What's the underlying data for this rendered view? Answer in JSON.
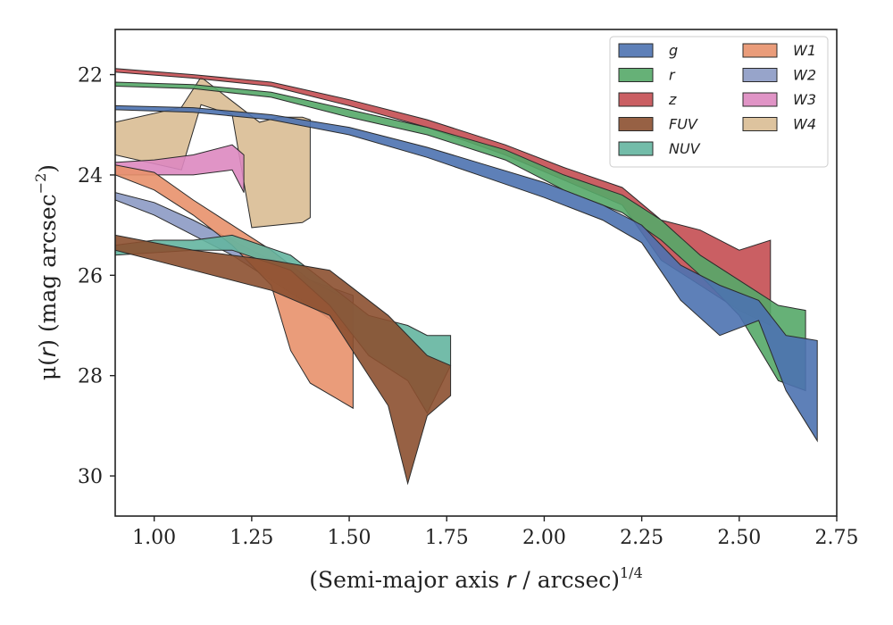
{
  "chart_data": {
    "type": "area",
    "xlabel": {
      "prefix": "(Semi-major axis ",
      "var": "r",
      "suffix": " / arcsec)",
      "sup": "1/4"
    },
    "ylabel": {
      "prefix": "μ(",
      "var": "r",
      "suffix": ") (mag arcsec",
      "sup": "−2",
      "end": ")"
    },
    "xlim": [
      0.9,
      2.75
    ],
    "ylim": [
      21.1,
      30.8
    ],
    "y_inverted": true,
    "xticks": [
      1.0,
      1.25,
      1.5,
      1.75,
      2.0,
      2.25,
      2.5,
      2.75
    ],
    "xtick_labels": [
      "1.00",
      "1.25",
      "1.50",
      "1.75",
      "2.00",
      "2.25",
      "2.50",
      "2.75"
    ],
    "yticks": [
      22,
      24,
      26,
      28,
      30
    ],
    "ytick_labels": [
      "22",
      "24",
      "26",
      "28",
      "30"
    ],
    "grid": false,
    "legend": {
      "placement": "top-right",
      "columns": 2
    },
    "series": [
      {
        "name": "g",
        "color": "#4c72b0",
        "upper": [
          [
            0.9,
            22.62
          ],
          [
            1.1,
            22.66
          ],
          [
            1.3,
            22.8
          ],
          [
            1.5,
            23.05
          ],
          [
            1.7,
            23.45
          ],
          [
            1.85,
            23.8
          ],
          [
            2.0,
            24.15
          ],
          [
            2.15,
            24.6
          ],
          [
            2.25,
            25.0
          ],
          [
            2.35,
            25.8
          ],
          [
            2.45,
            26.2
          ],
          [
            2.55,
            26.5
          ],
          [
            2.62,
            27.2
          ],
          [
            2.7,
            27.3
          ]
        ],
        "lower": [
          [
            0.9,
            22.7
          ],
          [
            1.1,
            22.75
          ],
          [
            1.3,
            22.9
          ],
          [
            1.5,
            23.2
          ],
          [
            1.7,
            23.65
          ],
          [
            1.85,
            24.05
          ],
          [
            2.0,
            24.45
          ],
          [
            2.15,
            24.9
          ],
          [
            2.25,
            25.35
          ],
          [
            2.35,
            26.5
          ],
          [
            2.45,
            27.2
          ],
          [
            2.55,
            26.9
          ],
          [
            2.62,
            28.3
          ],
          [
            2.7,
            29.3
          ]
        ]
      },
      {
        "name": "r",
        "color": "#55a868",
        "upper": [
          [
            0.9,
            22.15
          ],
          [
            1.1,
            22.2
          ],
          [
            1.3,
            22.35
          ],
          [
            1.5,
            22.7
          ],
          [
            1.7,
            23.05
          ],
          [
            1.9,
            23.5
          ],
          [
            2.05,
            24.0
          ],
          [
            2.2,
            24.4
          ],
          [
            2.3,
            24.9
          ],
          [
            2.4,
            25.6
          ],
          [
            2.5,
            26.1
          ],
          [
            2.6,
            26.6
          ],
          [
            2.67,
            26.7
          ]
        ],
        "lower": [
          [
            0.9,
            22.23
          ],
          [
            1.1,
            22.28
          ],
          [
            1.3,
            22.45
          ],
          [
            1.5,
            22.85
          ],
          [
            1.7,
            23.2
          ],
          [
            1.9,
            23.7
          ],
          [
            2.05,
            24.3
          ],
          [
            2.2,
            24.75
          ],
          [
            2.3,
            25.3
          ],
          [
            2.4,
            26.0
          ],
          [
            2.5,
            26.8
          ],
          [
            2.6,
            28.1
          ],
          [
            2.67,
            28.3
          ]
        ]
      },
      {
        "name": "z",
        "color": "#c44e52",
        "upper": [
          [
            0.9,
            21.88
          ],
          [
            1.1,
            22.0
          ],
          [
            1.3,
            22.15
          ],
          [
            1.5,
            22.5
          ],
          [
            1.7,
            22.9
          ],
          [
            1.9,
            23.4
          ],
          [
            2.05,
            23.85
          ],
          [
            2.2,
            24.25
          ],
          [
            2.3,
            24.9
          ],
          [
            2.4,
            25.1
          ],
          [
            2.5,
            25.5
          ],
          [
            2.58,
            25.3
          ]
        ],
        "lower": [
          [
            0.9,
            21.95
          ],
          [
            1.1,
            22.07
          ],
          [
            1.3,
            22.23
          ],
          [
            1.5,
            22.62
          ],
          [
            1.7,
            23.05
          ],
          [
            1.9,
            23.6
          ],
          [
            2.05,
            24.1
          ],
          [
            2.2,
            24.6
          ],
          [
            2.3,
            25.7
          ],
          [
            2.4,
            26.2
          ],
          [
            2.5,
            26.7
          ],
          [
            2.58,
            27.0
          ]
        ]
      },
      {
        "name": "FUV",
        "color": "#8c5030",
        "upper": [
          [
            0.9,
            25.2
          ],
          [
            1.1,
            25.5
          ],
          [
            1.3,
            25.7
          ],
          [
            1.45,
            25.9
          ],
          [
            1.6,
            26.8
          ],
          [
            1.7,
            27.6
          ],
          [
            1.76,
            27.8
          ]
        ],
        "lower": [
          [
            0.9,
            25.5
          ],
          [
            1.1,
            25.9
          ],
          [
            1.3,
            26.3
          ],
          [
            1.45,
            26.8
          ],
          [
            1.6,
            28.6
          ],
          [
            1.65,
            30.15
          ],
          [
            1.7,
            28.8
          ],
          [
            1.76,
            28.4
          ]
        ]
      },
      {
        "name": "NUV",
        "color": "#64b5a0",
        "upper": [
          [
            0.9,
            25.4
          ],
          [
            1.0,
            25.3
          ],
          [
            1.1,
            25.3
          ],
          [
            1.2,
            25.2
          ],
          [
            1.35,
            25.6
          ],
          [
            1.45,
            26.2
          ],
          [
            1.55,
            26.8
          ],
          [
            1.65,
            27.0
          ],
          [
            1.7,
            27.2
          ],
          [
            1.76,
            27.2
          ]
        ],
        "lower": [
          [
            0.9,
            25.6
          ],
          [
            1.0,
            25.55
          ],
          [
            1.1,
            25.5
          ],
          [
            1.2,
            25.5
          ],
          [
            1.35,
            25.9
          ],
          [
            1.45,
            26.6
          ],
          [
            1.55,
            27.6
          ],
          [
            1.65,
            28.1
          ],
          [
            1.7,
            28.75
          ],
          [
            1.76,
            27.8
          ]
        ]
      },
      {
        "name": "W1",
        "color": "#e8916b",
        "upper": [
          [
            0.9,
            23.8
          ],
          [
            1.0,
            23.95
          ],
          [
            1.1,
            24.5
          ],
          [
            1.2,
            25.0
          ],
          [
            1.3,
            25.5
          ],
          [
            1.4,
            26.1
          ],
          [
            1.5,
            26.5
          ],
          [
            1.51,
            26.6
          ]
        ],
        "lower": [
          [
            0.9,
            24.0
          ],
          [
            1.0,
            24.3
          ],
          [
            1.1,
            24.8
          ],
          [
            1.2,
            25.4
          ],
          [
            1.3,
            26.2
          ],
          [
            1.35,
            27.5
          ],
          [
            1.4,
            28.15
          ],
          [
            1.51,
            28.65
          ]
        ]
      },
      {
        "name": "W2",
        "color": "#8c9ac4",
        "upper": [
          [
            0.9,
            24.35
          ],
          [
            1.0,
            24.55
          ],
          [
            1.1,
            24.9
          ],
          [
            1.2,
            25.3
          ],
          [
            1.3,
            25.7
          ],
          [
            1.4,
            26.1
          ],
          [
            1.51,
            26.4
          ]
        ],
        "lower": [
          [
            0.9,
            24.5
          ],
          [
            1.0,
            24.8
          ],
          [
            1.1,
            25.2
          ],
          [
            1.2,
            25.6
          ],
          [
            1.3,
            26.1
          ],
          [
            1.4,
            26.6
          ],
          [
            1.51,
            27.2
          ]
        ]
      },
      {
        "name": "W3",
        "color": "#dd88c0",
        "upper": [
          [
            0.9,
            23.75
          ],
          [
            1.0,
            23.7
          ],
          [
            1.1,
            23.6
          ],
          [
            1.2,
            23.4
          ],
          [
            1.23,
            23.6
          ]
        ],
        "lower": [
          [
            0.9,
            24.0
          ],
          [
            1.0,
            24.0
          ],
          [
            1.1,
            24.0
          ],
          [
            1.2,
            23.9
          ],
          [
            1.23,
            24.35
          ]
        ]
      },
      {
        "name": "W4",
        "color": "#d9bd94",
        "upper": [
          [
            0.9,
            22.95
          ],
          [
            1.07,
            22.65
          ],
          [
            1.12,
            22.05
          ],
          [
            1.27,
            22.95
          ],
          [
            1.32,
            22.85
          ],
          [
            1.38,
            22.85
          ],
          [
            1.4,
            22.9
          ]
        ],
        "lower": [
          [
            0.9,
            23.6
          ],
          [
            1.07,
            23.9
          ],
          [
            1.12,
            22.6
          ],
          [
            1.2,
            22.8
          ],
          [
            1.25,
            25.05
          ],
          [
            1.38,
            24.95
          ],
          [
            1.4,
            24.85
          ]
        ]
      }
    ]
  }
}
